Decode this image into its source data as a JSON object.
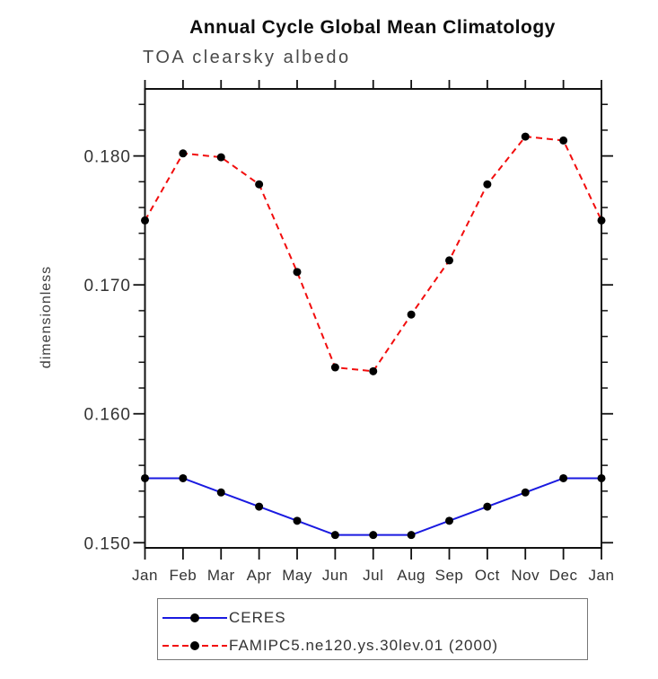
{
  "page": {
    "background": "#ffffff"
  },
  "chart_data": {
    "type": "line",
    "title": "Annual Cycle Global Mean Climatology",
    "subtitle": "TOA clearsky albedo",
    "xlabel": "",
    "ylabel": "dimensionless",
    "categories": [
      "Jan",
      "Feb",
      "Mar",
      "Apr",
      "May",
      "Jun",
      "Jul",
      "Aug",
      "Sep",
      "Oct",
      "Nov",
      "Dec",
      "Jan"
    ],
    "ylim": [
      0.1496,
      0.1852
    ],
    "y_major_ticks": [
      0.15,
      0.16,
      0.17,
      0.18
    ],
    "y_tick_labels": [
      "0.150",
      "0.160",
      "0.170",
      "0.180"
    ],
    "y_minor_tick_step": 0.002,
    "grid": false,
    "legend_position": "bottom",
    "axis_color": "#111111",
    "text_color": "#333333",
    "series": [
      {
        "name": "CERES",
        "color": "#1a1ae0",
        "line_style": "solid",
        "marker": "filled-circle",
        "marker_color": "#000000",
        "values": [
          0.155,
          0.155,
          0.1539,
          0.1528,
          0.1517,
          0.1506,
          0.1506,
          0.1506,
          0.1517,
          0.1528,
          0.1539,
          0.155,
          0.155
        ]
      },
      {
        "name": "FAMIPC5.ne120.ys.30lev.01 (2000)",
        "color": "#f20d0d",
        "line_style": "dashed",
        "marker": "filled-circle",
        "marker_color": "#000000",
        "values": [
          0.175,
          0.1802,
          0.1799,
          0.1778,
          0.171,
          0.1636,
          0.1633,
          0.1677,
          0.1719,
          0.1778,
          0.1815,
          0.1812,
          0.175
        ]
      }
    ]
  }
}
